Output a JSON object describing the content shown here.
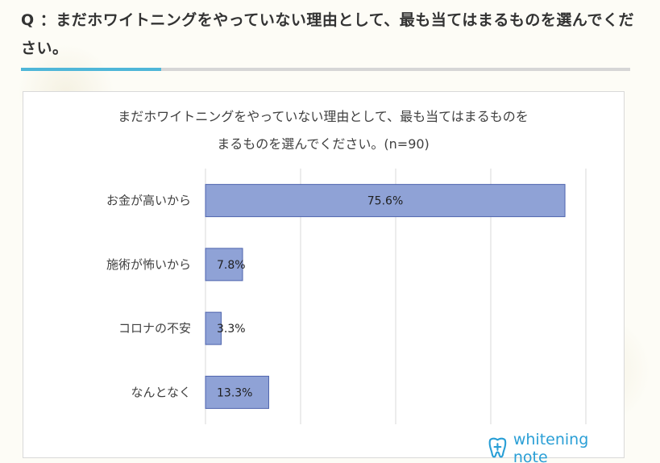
{
  "question": {
    "text": "Q ：まだホワイトニングをやっていない理由として、最も当てはまるものを選んでください。"
  },
  "colors": {
    "bar_fill": "#8fa2d6",
    "bar_stroke": "#4e63ad",
    "accent": "#4fb6d8",
    "logo": "#2a9fd6"
  },
  "chart_data": {
    "type": "bar",
    "orientation": "horizontal",
    "title_line1": "まだホワイトニングをやっていない理由として、最も当てはまるものを",
    "title_line2": "まるものを選んでください。(n=90)",
    "title": "まだホワイトニングをやっていない理由として、最も当てはまるものを選んでください。(n=90)",
    "categories": [
      "お金が高いから",
      "施術が怖いから",
      "コロナの不安",
      "なんとなく"
    ],
    "values": [
      75.6,
      7.8,
      3.3,
      13.3
    ],
    "value_labels": [
      "75.6%",
      "7.8%",
      "3.3%",
      "13.3%"
    ],
    "xlim": [
      0,
      80
    ],
    "grid": true,
    "legend": "none"
  },
  "logo": {
    "icon": "tooth-plus-icon",
    "text": "whitening note"
  }
}
